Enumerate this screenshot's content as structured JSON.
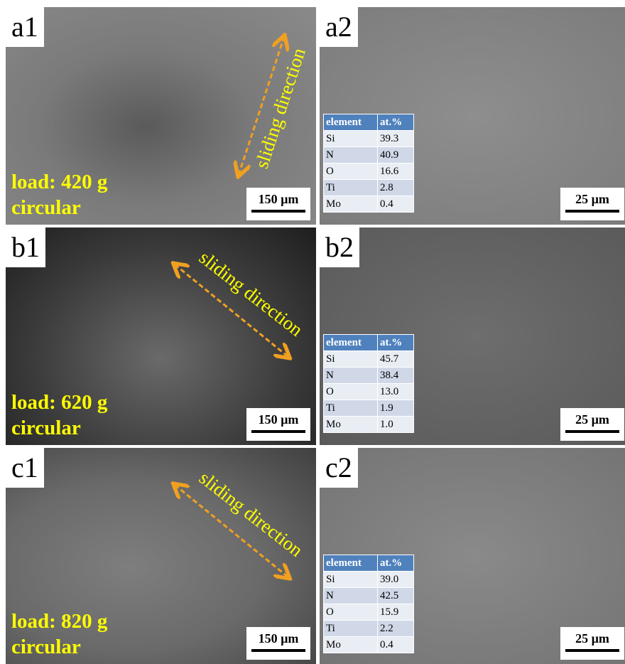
{
  "panels": [
    {
      "label": "a1",
      "load": "load: 420 g",
      "mode": "circular",
      "direction": "sliding direction",
      "scale": "150 µm"
    },
    {
      "label": "a2",
      "scale": "25 µm",
      "table": {
        "header": [
          "element",
          "at.%"
        ],
        "rows": [
          [
            "Si",
            "39.3"
          ],
          [
            "N",
            "40.9"
          ],
          [
            "O",
            "16.6"
          ],
          [
            "Ti",
            "2.8"
          ],
          [
            "Mo",
            "0.4"
          ]
        ]
      }
    },
    {
      "label": "b1",
      "load": "load: 620 g",
      "mode": "circular",
      "direction": "sliding direction",
      "scale": "150 µm"
    },
    {
      "label": "b2",
      "scale": "25 µm",
      "table": {
        "header": [
          "element",
          "at.%"
        ],
        "rows": [
          [
            "Si",
            "45.7"
          ],
          [
            "N",
            "38.4"
          ],
          [
            "O",
            "13.0"
          ],
          [
            "Ti",
            "1.9"
          ],
          [
            "Mo",
            "1.0"
          ]
        ]
      }
    },
    {
      "label": "c1",
      "load": "load: 820 g",
      "mode": "circular",
      "direction": "sliding direction",
      "scale": "150 µm"
    },
    {
      "label": "c2",
      "scale": "25 µm",
      "table": {
        "header": [
          "element",
          "at.%"
        ],
        "rows": [
          [
            "Si",
            "39.0"
          ],
          [
            "N",
            "42.5"
          ],
          [
            "O",
            "15.9"
          ],
          [
            "Ti",
            "2.2"
          ],
          [
            "Mo",
            "0.4"
          ]
        ]
      }
    }
  ]
}
